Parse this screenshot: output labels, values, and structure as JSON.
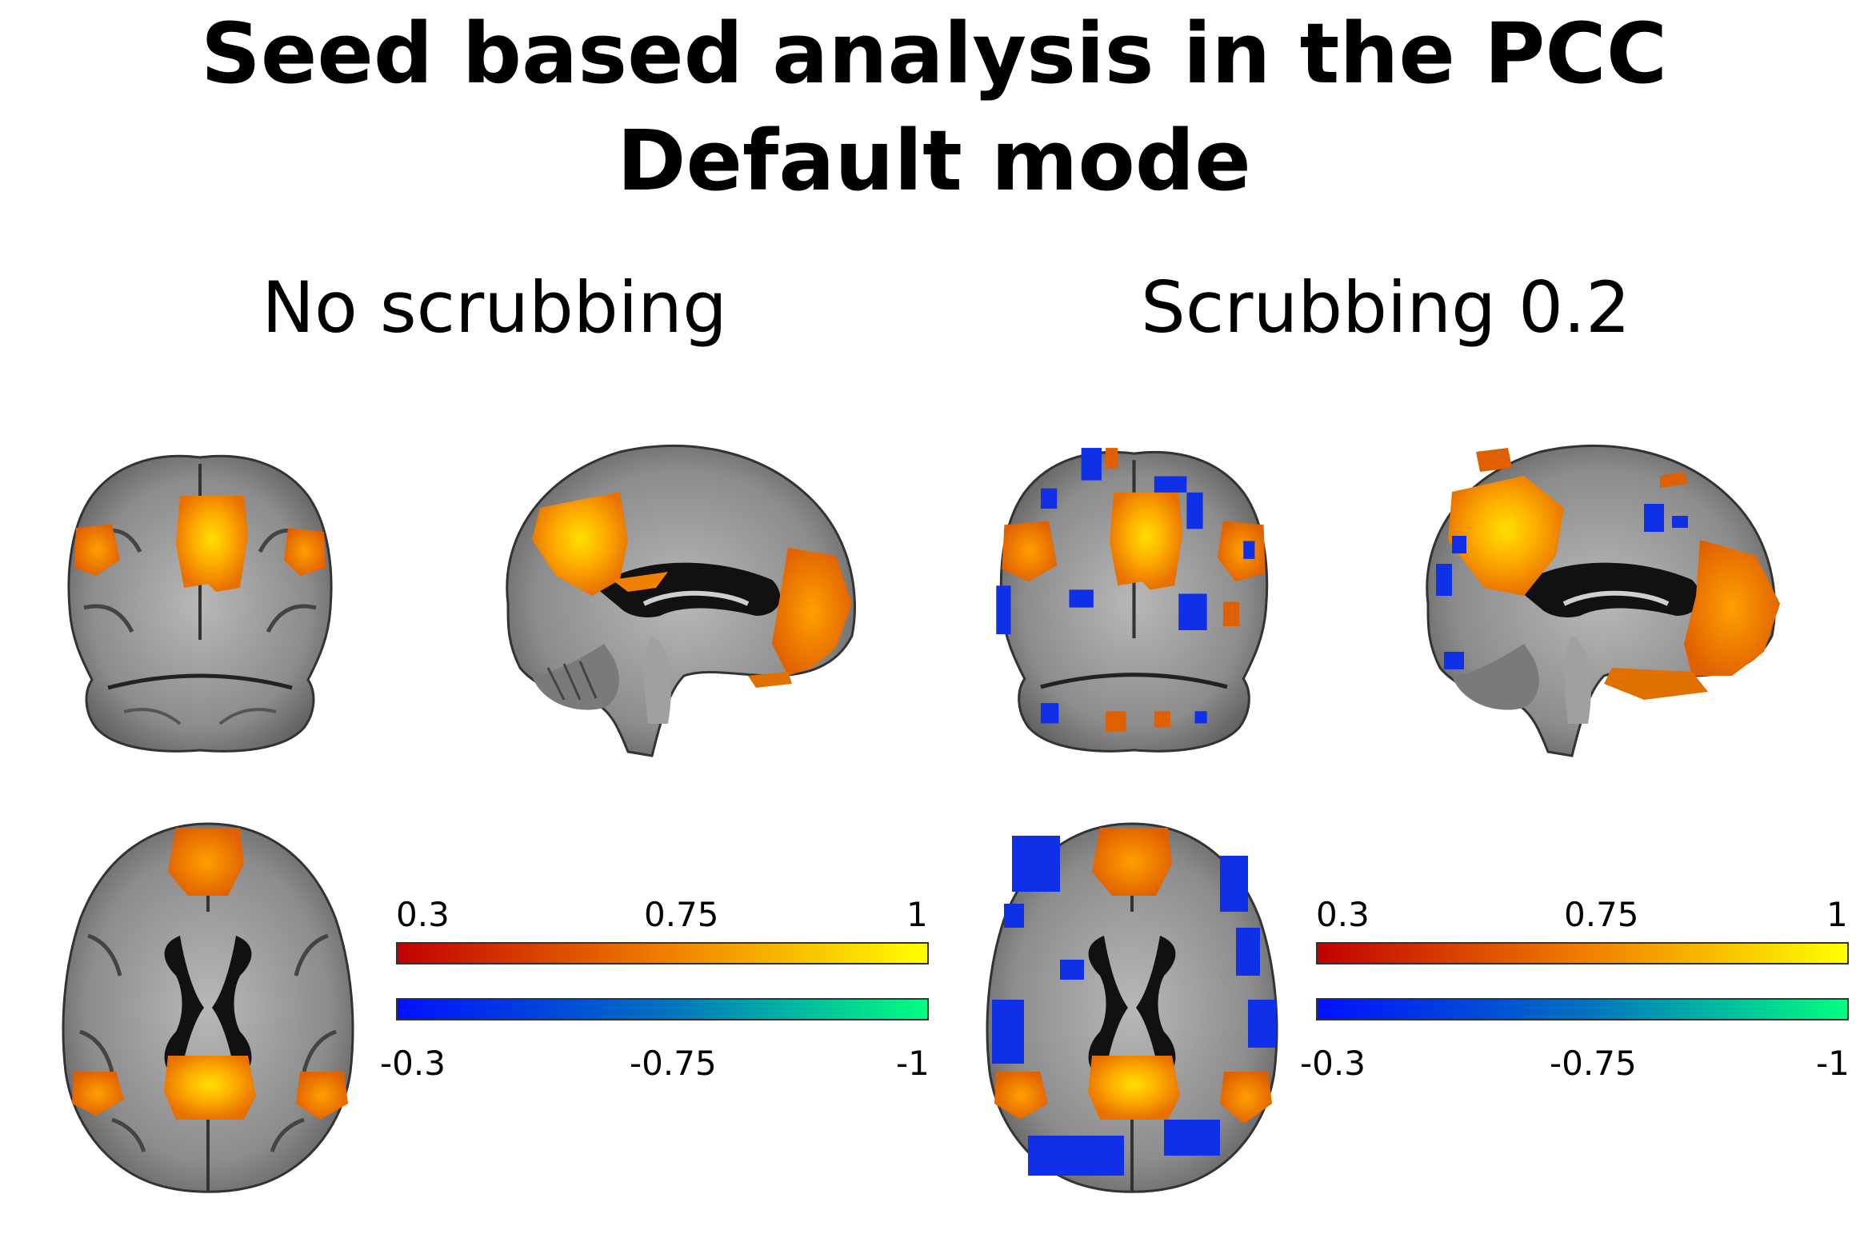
{
  "title": {
    "line1": "Seed based analysis in the PCC",
    "line2": "Default mode"
  },
  "panels": [
    {
      "title": "No scrubbing",
      "colorbar": {
        "positive_ticks": [
          "0.3",
          "0.75",
          "1"
        ],
        "negative_ticks": [
          "-0.3",
          "-0.75",
          "-1"
        ]
      },
      "has_negative_clusters": false
    },
    {
      "title": "Scrubbing 0.2",
      "colorbar": {
        "positive_ticks": [
          "0.3",
          "0.75",
          "1"
        ],
        "negative_ticks": [
          "-0.3",
          "-0.75",
          "-1"
        ]
      },
      "has_negative_clusters": true
    }
  ],
  "colors": {
    "positive_low": "#c00000",
    "positive_mid": "#f07d00",
    "positive_high": "#ffff00",
    "negative_low": "#0010ff",
    "negative_mid": "#0070c0",
    "negative_high": "#00ff80",
    "brain_gray": "#8a8a8a"
  }
}
